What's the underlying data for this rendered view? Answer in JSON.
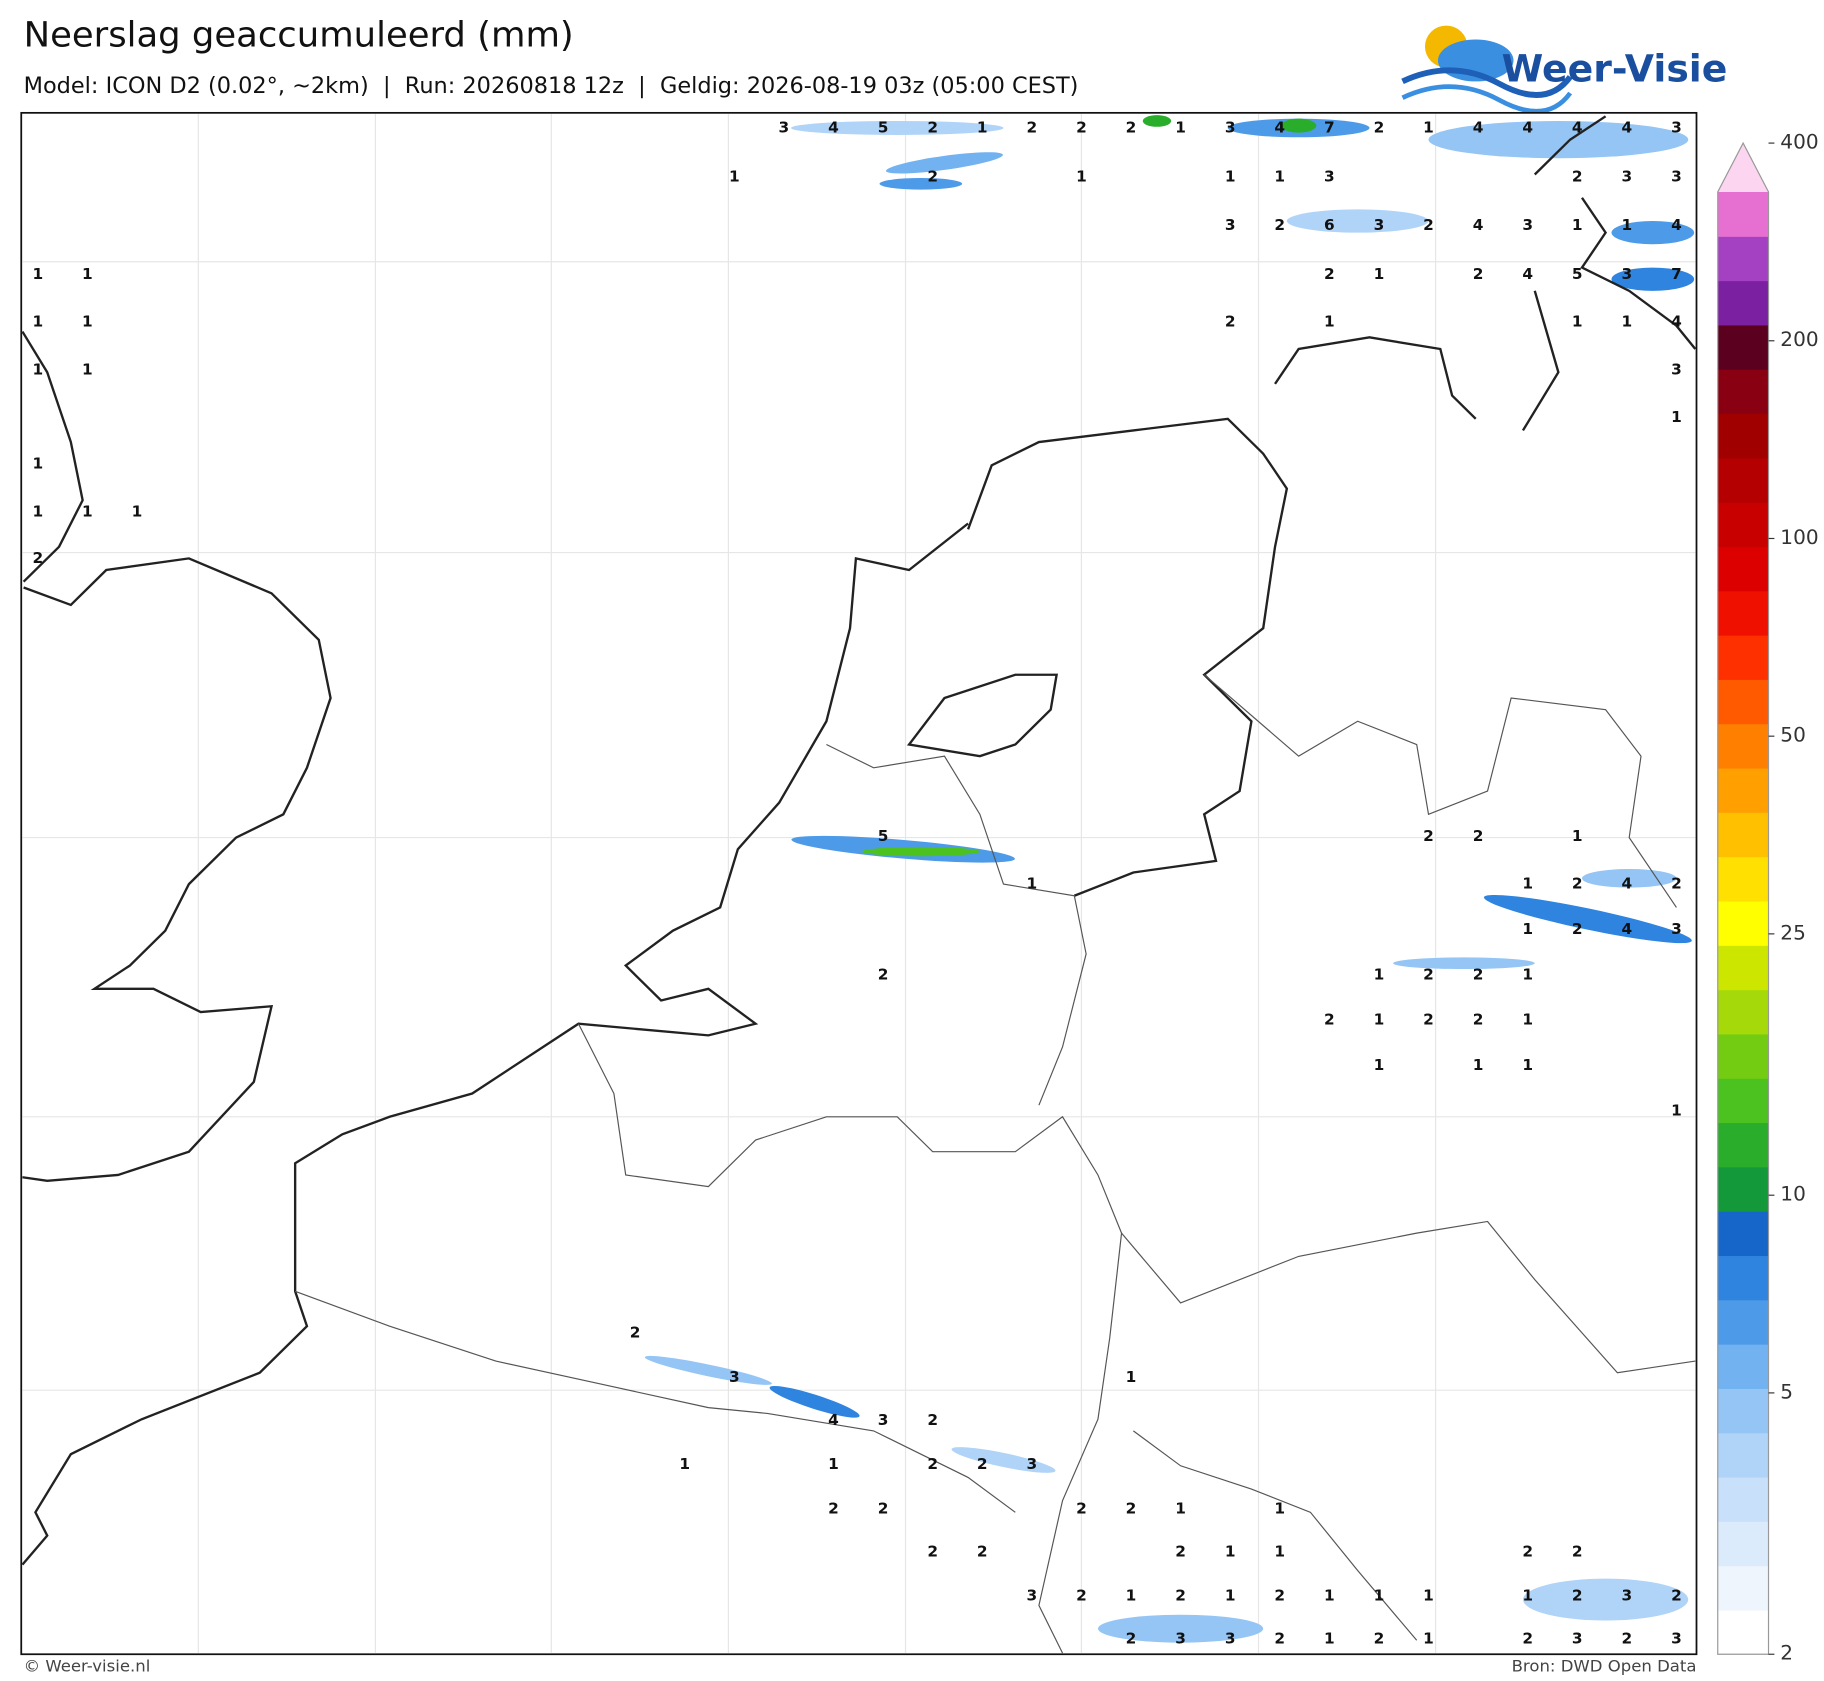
{
  "header": {
    "title": "Neerslag geaccumuleerd (mm)",
    "subtitle": "Model: ICON D2 (0.02°, ~2km)  |  Run: 20260818 12z  |  Geldig: 2026-08-19 03z (05:00 CEST)",
    "logo": "Weer-Visie"
  },
  "footer": {
    "credit": "© Weer-visie.nl",
    "source": "Bron: DWD Open Data"
  },
  "map": {
    "labels": [
      [
        3,
        4,
        5,
        2,
        1,
        2,
        2,
        2,
        1,
        3,
        4,
        7,
        2,
        1,
        4,
        4,
        4,
        4,
        3
      ],
      [
        1,
        2,
        1,
        1,
        1,
        3,
        2,
        3,
        3
      ],
      [
        3,
        2,
        6,
        3,
        2,
        4,
        3,
        1,
        1,
        4
      ],
      [
        1,
        1,
        2,
        1,
        2,
        4,
        5,
        3,
        7
      ],
      [
        1,
        1,
        2,
        1,
        1,
        1,
        4
      ],
      [
        1,
        1,
        3
      ],
      [
        1
      ],
      [
        1
      ],
      [
        1,
        1,
        1
      ],
      [
        2
      ],
      [
        5,
        2,
        2,
        1
      ],
      [
        1,
        1,
        2,
        4,
        2
      ],
      [
        1,
        2,
        4,
        3
      ],
      [
        2,
        1,
        2,
        2,
        1
      ],
      [
        2,
        1,
        2,
        2,
        1
      ],
      [
        1,
        1,
        1
      ],
      [
        1
      ],
      [
        2
      ],
      [
        3,
        1
      ],
      [
        4,
        3,
        2
      ],
      [
        1,
        1,
        2,
        2,
        3
      ],
      [
        2,
        2,
        2,
        2,
        1,
        1
      ],
      [
        2,
        2,
        2,
        1,
        1,
        2,
        2
      ],
      [
        3,
        2,
        1,
        2,
        1,
        2,
        1,
        1,
        1,
        1,
        2,
        3,
        2
      ],
      [
        2,
        3,
        3,
        2,
        1,
        2,
        1,
        2,
        3,
        2,
        3
      ]
    ]
  },
  "colorbar": {
    "ticks": [
      2,
      5,
      10,
      25,
      50,
      100,
      200,
      400
    ],
    "lim": [
      2,
      400
    ],
    "log": true,
    "colors": [
      "#ffffff",
      "#eef5fd",
      "#dcebfb",
      "#c8e0fa",
      "#b0d3f8",
      "#95c5f5",
      "#72b2f0",
      "#4d9be8",
      "#2e84de",
      "#1666c9",
      "#14993a",
      "#29ad2a",
      "#4bc21f",
      "#74cc12",
      "#a6d90a",
      "#cde600",
      "#ffff00",
      "#ffe000",
      "#ffc000",
      "#ffa000",
      "#ff8000",
      "#ff5a00",
      "#ff3000",
      "#f01000",
      "#dc0000",
      "#c80000",
      "#b40000",
      "#a00000",
      "#880012",
      "#5c0020",
      "#7a20a0",
      "#a440c2",
      "#e670d2",
      "#fcd6f0"
    ]
  }
}
